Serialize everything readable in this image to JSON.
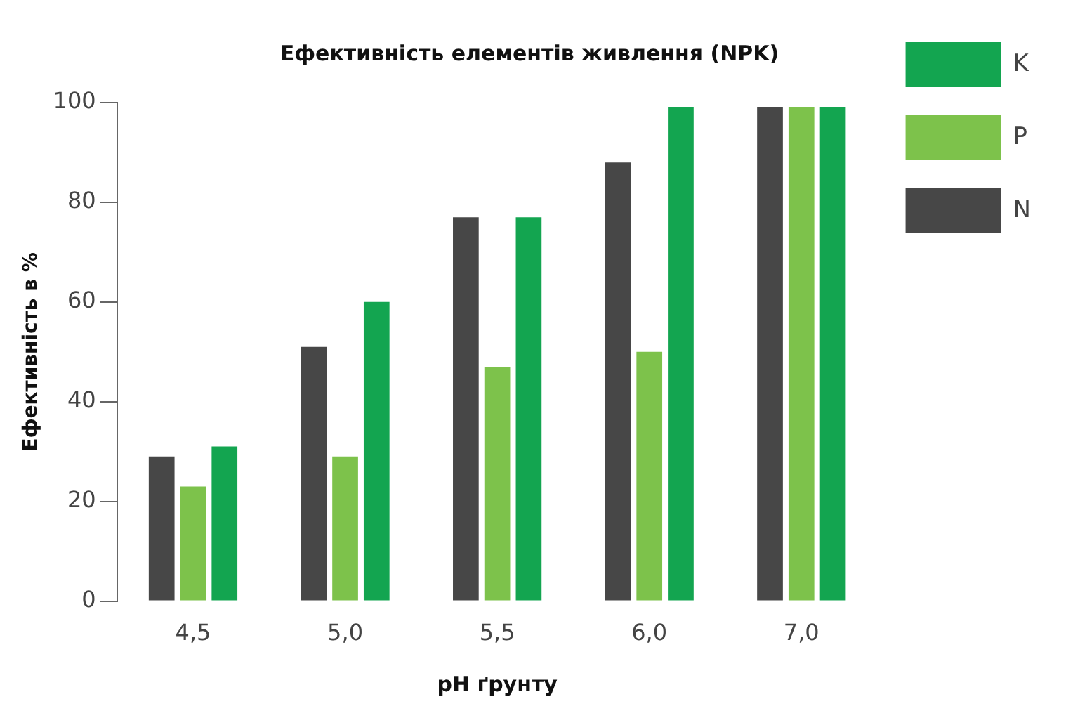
{
  "chart_data": {
    "type": "bar",
    "title": "Ефективність елементів живлення (NPK)",
    "xlabel": "pH ґрунту",
    "ylabel": "Ефективність в %",
    "categories": [
      "4,5",
      "5,0",
      "5,5",
      "6,0",
      "7,0"
    ],
    "series": [
      {
        "name": "N",
        "color": "#474747",
        "values": [
          29,
          51,
          77,
          88,
          99
        ]
      },
      {
        "name": "P",
        "color": "#7dc24b",
        "values": [
          23,
          29,
          47,
          50,
          99
        ]
      },
      {
        "name": "K",
        "color": "#13a550",
        "values": [
          31,
          60,
          77,
          99,
          99
        ]
      }
    ],
    "ylim": [
      0,
      100
    ],
    "yticks": [
      0,
      20,
      40,
      60,
      80,
      100
    ],
    "grid": false,
    "legend": "right"
  }
}
